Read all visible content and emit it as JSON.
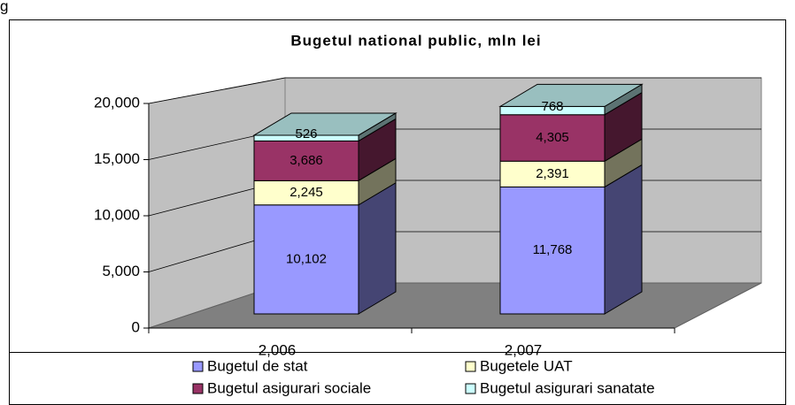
{
  "note": "g",
  "chart_data": {
    "type": "bar3d-stacked",
    "title": "Bugetul national public, mln lei",
    "categories": [
      "2,006",
      "2,007"
    ],
    "series": [
      {
        "name": "Bugetul de stat",
        "color": "#9999ff",
        "values": [
          10102,
          11768
        ],
        "value_labels": [
          "10,102",
          "11,768"
        ]
      },
      {
        "name": "Bugetele UAT",
        "color": "#ffffcc",
        "values": [
          2245,
          2391
        ],
        "value_labels": [
          "2,245",
          "2,391"
        ]
      },
      {
        "name": "Bugetul asigurari sociale",
        "color": "#993366",
        "values": [
          3686,
          4305
        ],
        "value_labels": [
          "3,686",
          "4,305"
        ]
      },
      {
        "name": "Bugetul asigurari sanatate",
        "color": "#ccffff",
        "values": [
          526,
          768
        ]
      }
    ],
    "ylim": [
      0,
      20000
    ],
    "yticks": [
      0,
      {
        "value": 5000,
        "label": "5,000"
      },
      {
        "value": 10000,
        "label": "10,000"
      },
      {
        "value": 15000,
        "label": "15,000"
      },
      {
        "value": 20000,
        "label": "20,000"
      }
    ],
    "grid": true,
    "legend": "bottom"
  }
}
